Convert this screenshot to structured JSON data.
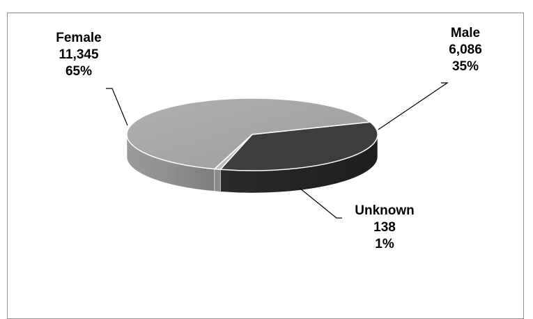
{
  "chart_data": {
    "type": "pie",
    "title": "",
    "slices": [
      {
        "name": "Male",
        "value": 6086,
        "value_label": "6,086",
        "percent_label": "35%",
        "color_top": "#3d3d3d",
        "color_side": "#232323"
      },
      {
        "name": "Unknown",
        "value": 138,
        "value_label": "138",
        "percent_label": "1%",
        "color_top": "#bdbdbd",
        "color_side": "#8a8a8a"
      },
      {
        "name": "Female",
        "value": 11345,
        "value_label": "11,345",
        "percent_label": "65%",
        "color_top": "#a6a6a6",
        "color_side": "#8c8c8c"
      }
    ],
    "style": "3d",
    "legend": "none"
  }
}
